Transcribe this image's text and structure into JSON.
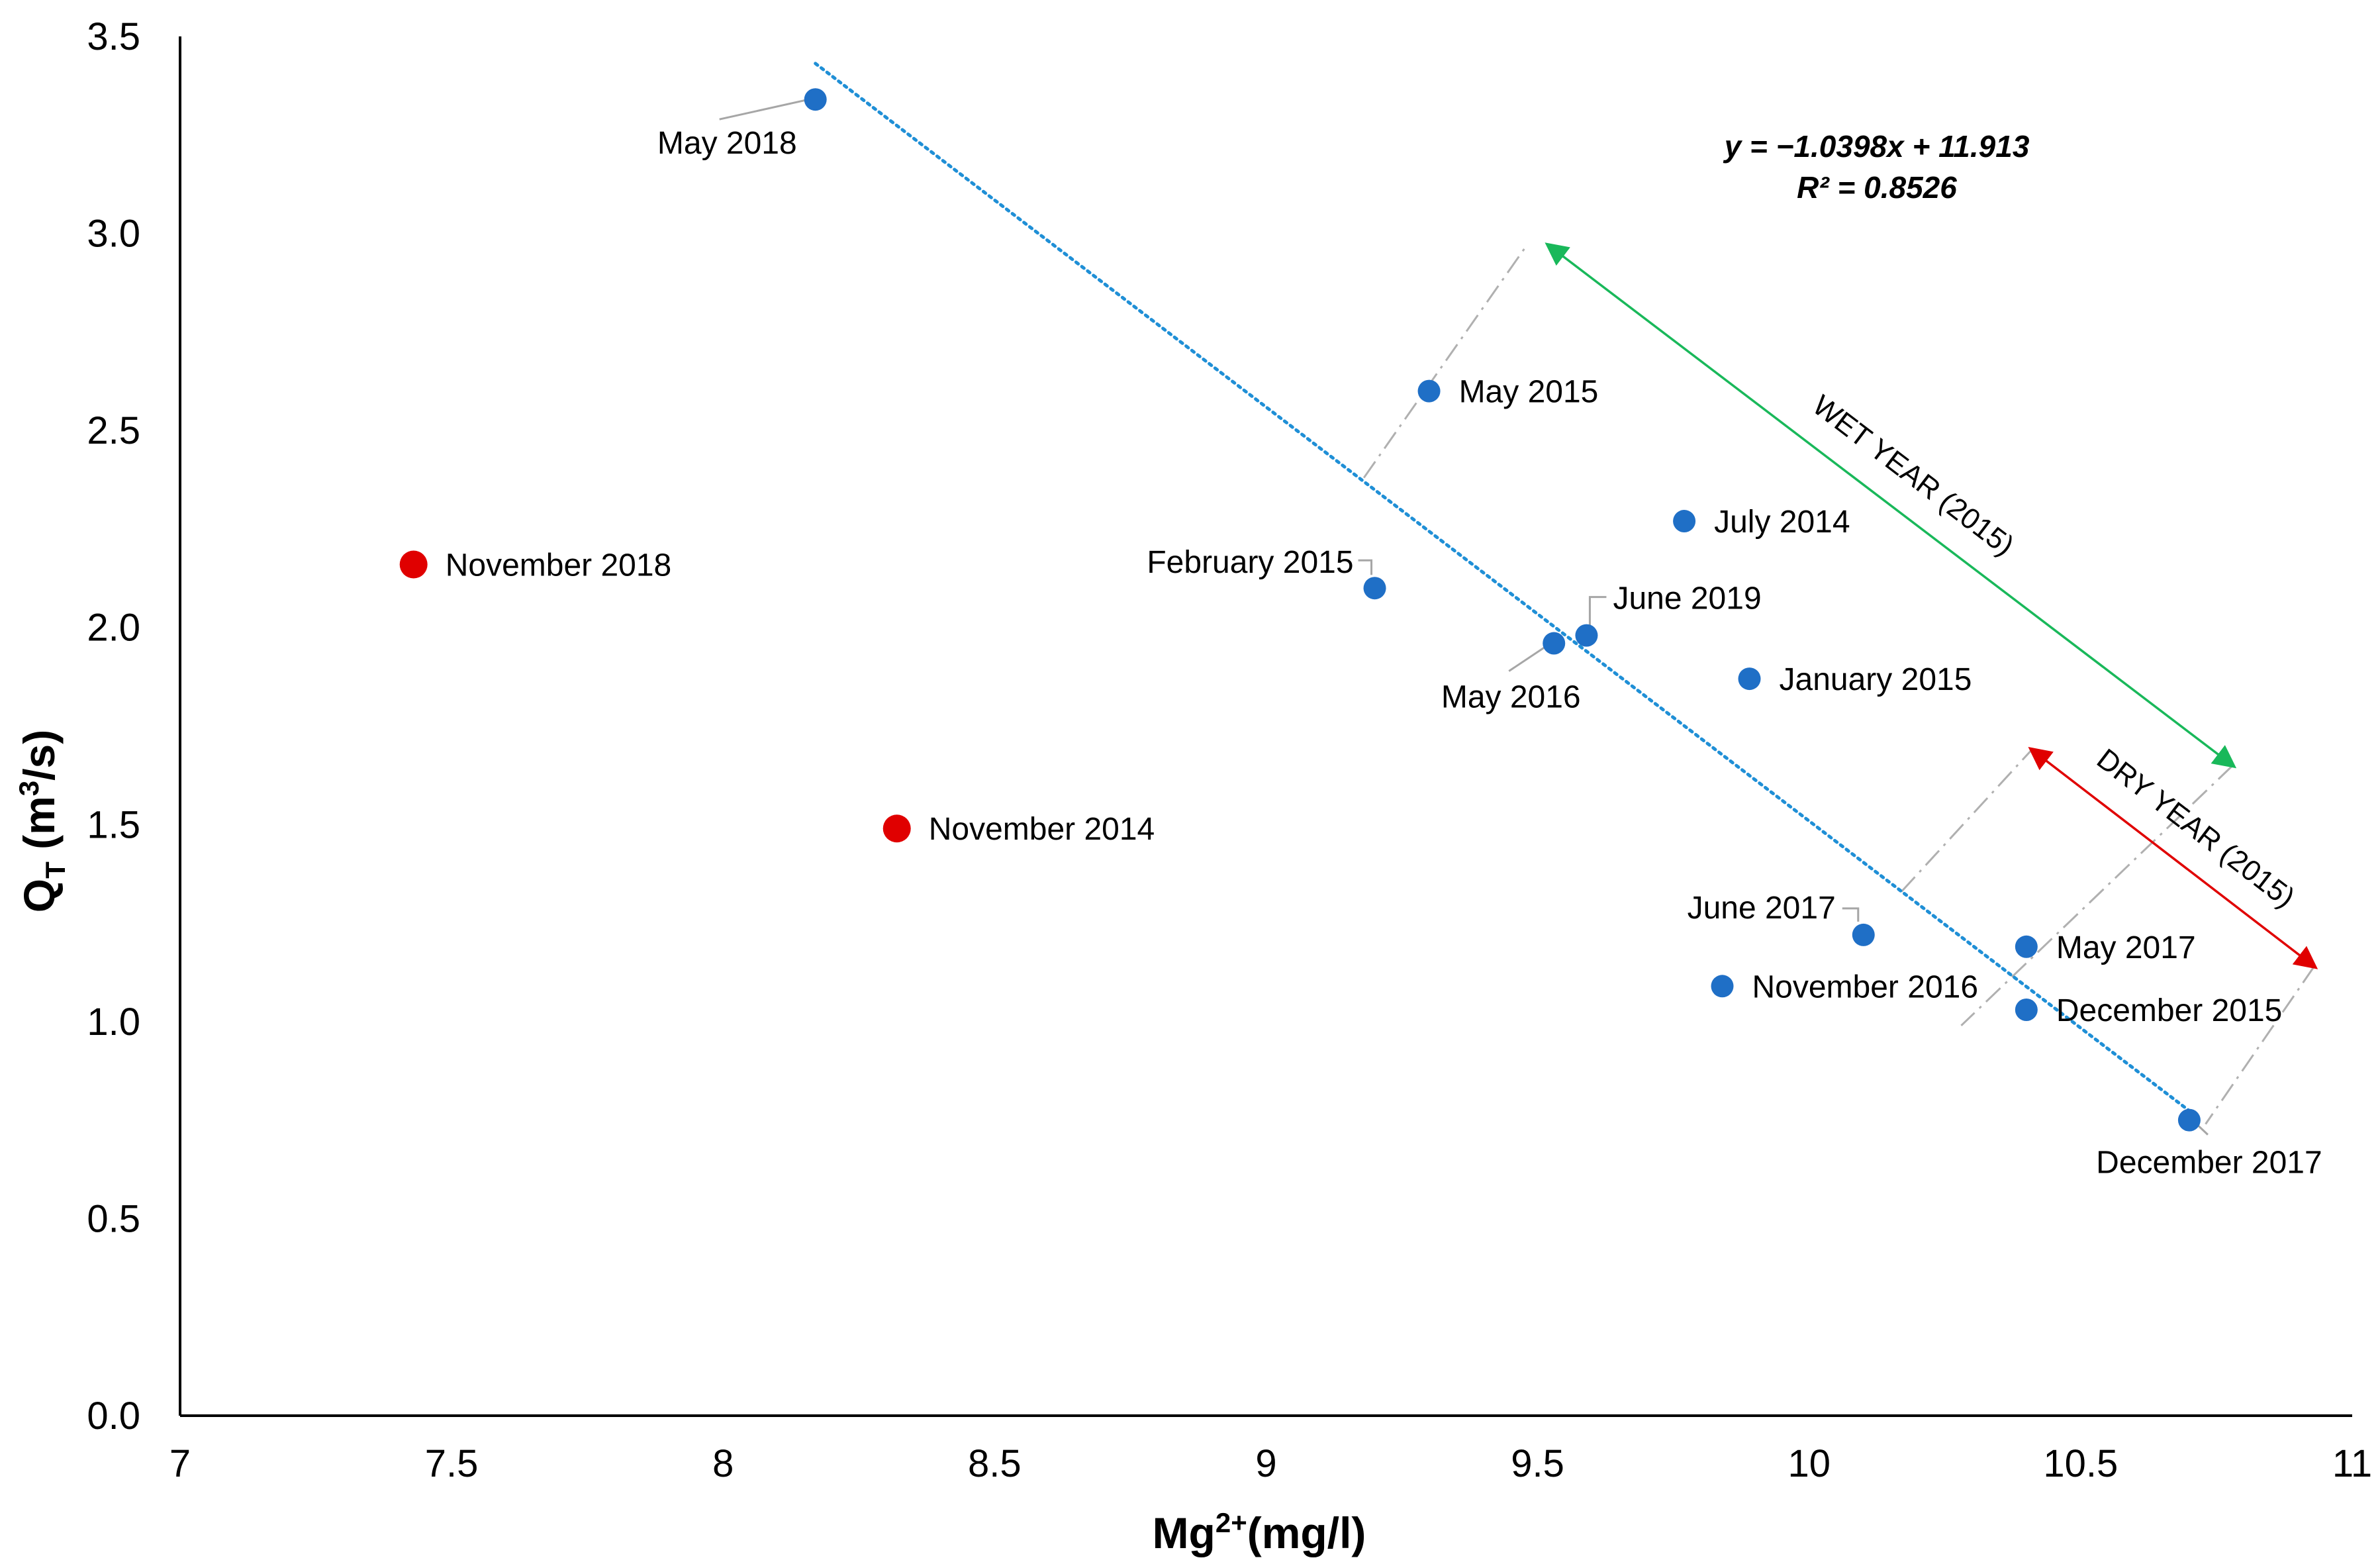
{
  "chart_data": {
    "type": "scatter",
    "xlabel": "Mg²⁺(mg/l)",
    "xlabel_base": "Mg",
    "xlabel_sup": "2+",
    "xlabel_rest": "(mg/l)",
    "ylabel_base": "Q",
    "ylabel_sub": "T",
    "ylabel_rest": " (m",
    "ylabel_sup": "3",
    "ylabel_end": "/s)",
    "xlim": [
      7,
      11
    ],
    "ylim": [
      0,
      3.5
    ],
    "xticks": [
      7,
      7.5,
      8,
      8.5,
      9,
      9.5,
      10,
      10.5,
      11
    ],
    "xtick_labels": [
      "7",
      "7.5",
      "8",
      "8.5",
      "9",
      "9.5",
      "10",
      "10.5",
      "11"
    ],
    "yticks": [
      0,
      0.5,
      1,
      1.5,
      2,
      2.5,
      3,
      3.5
    ],
    "ytick_labels": [
      "0.0",
      "0.5",
      "1.0",
      "1.5",
      "2.0",
      "2.5",
      "3.0",
      "3.5"
    ],
    "grid": false,
    "series": [
      {
        "name": "blue",
        "color": "#1f6fc6",
        "points": [
          {
            "label": "May 2018",
            "x": 8.17,
            "y": 3.34
          },
          {
            "label": "May 2015",
            "x": 9.3,
            "y": 2.6
          },
          {
            "label": "July 2014",
            "x": 9.77,
            "y": 2.27
          },
          {
            "label": "February 2015",
            "x": 9.2,
            "y": 2.1
          },
          {
            "label": "June 2019",
            "x": 9.59,
            "y": 1.98
          },
          {
            "label": "May 2016",
            "x": 9.53,
            "y": 1.96
          },
          {
            "label": "January 2015",
            "x": 9.89,
            "y": 1.87
          },
          {
            "label": "June 2017",
            "x": 10.1,
            "y": 1.22
          },
          {
            "label": "May 2017",
            "x": 10.4,
            "y": 1.19
          },
          {
            "label": "November 2016",
            "x": 9.84,
            "y": 1.09
          },
          {
            "label": "December 2015",
            "x": 10.4,
            "y": 1.03
          },
          {
            "label": "December 2017",
            "x": 10.7,
            "y": 0.75
          }
        ]
      },
      {
        "name": "red",
        "color": "#e00000",
        "points": [
          {
            "label": "November 2018",
            "x": 7.43,
            "y": 2.16
          },
          {
            "label": "November 2014",
            "x": 8.32,
            "y": 1.49
          }
        ]
      }
    ],
    "trendline": {
      "type": "linear",
      "slope": -1.0398,
      "intercept": 11.913,
      "x_range": [
        8.17,
        10.7
      ],
      "color": "#1f8fd6",
      "style": "dotted",
      "equation": "y = −1.0398x + 11.913",
      "r_squared": "R² = 0.8526"
    },
    "annotations": [
      {
        "label": "WET YEAR (2015)",
        "color": "#19b85a",
        "from": [
          9.52,
          2.97
        ],
        "to": [
          10.78,
          1.65
        ]
      },
      {
        "label": "DRY YEAR (2015)",
        "color": "#e00000",
        "from": [
          10.41,
          1.69
        ],
        "to": [
          10.93,
          1.14
        ]
      }
    ]
  }
}
